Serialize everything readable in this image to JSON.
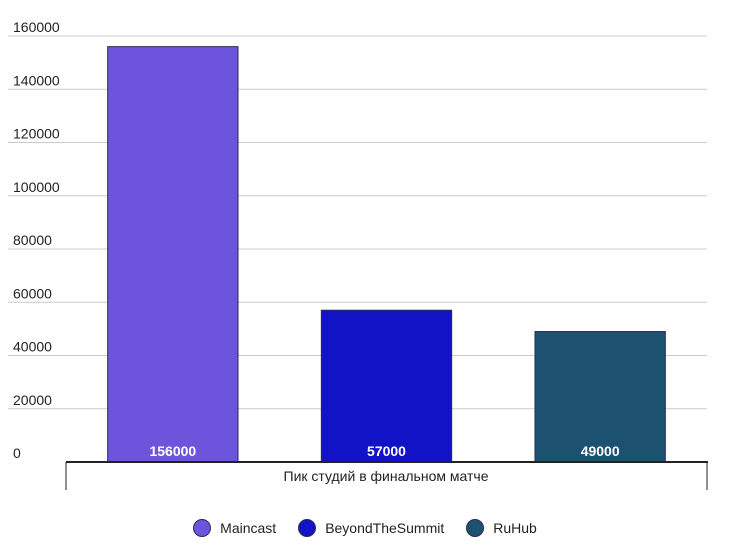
{
  "chart_data": {
    "type": "bar",
    "categories": [
      "Maincast",
      "BeyondTheSummit",
      "RuHub"
    ],
    "values": [
      156000,
      57000,
      49000
    ],
    "colors": [
      "#6c55dc",
      "#1212c6",
      "#1c5270"
    ],
    "xlabel": "Пик студий в финальном матче",
    "ylabel": "",
    "ylim": [
      0,
      160000
    ],
    "yticks": [
      0,
      20000,
      40000,
      60000,
      80000,
      100000,
      120000,
      140000,
      160000
    ],
    "grid": true,
    "legend_position": "bottom",
    "data_labels": [
      "156000",
      "57000",
      "49000"
    ]
  }
}
